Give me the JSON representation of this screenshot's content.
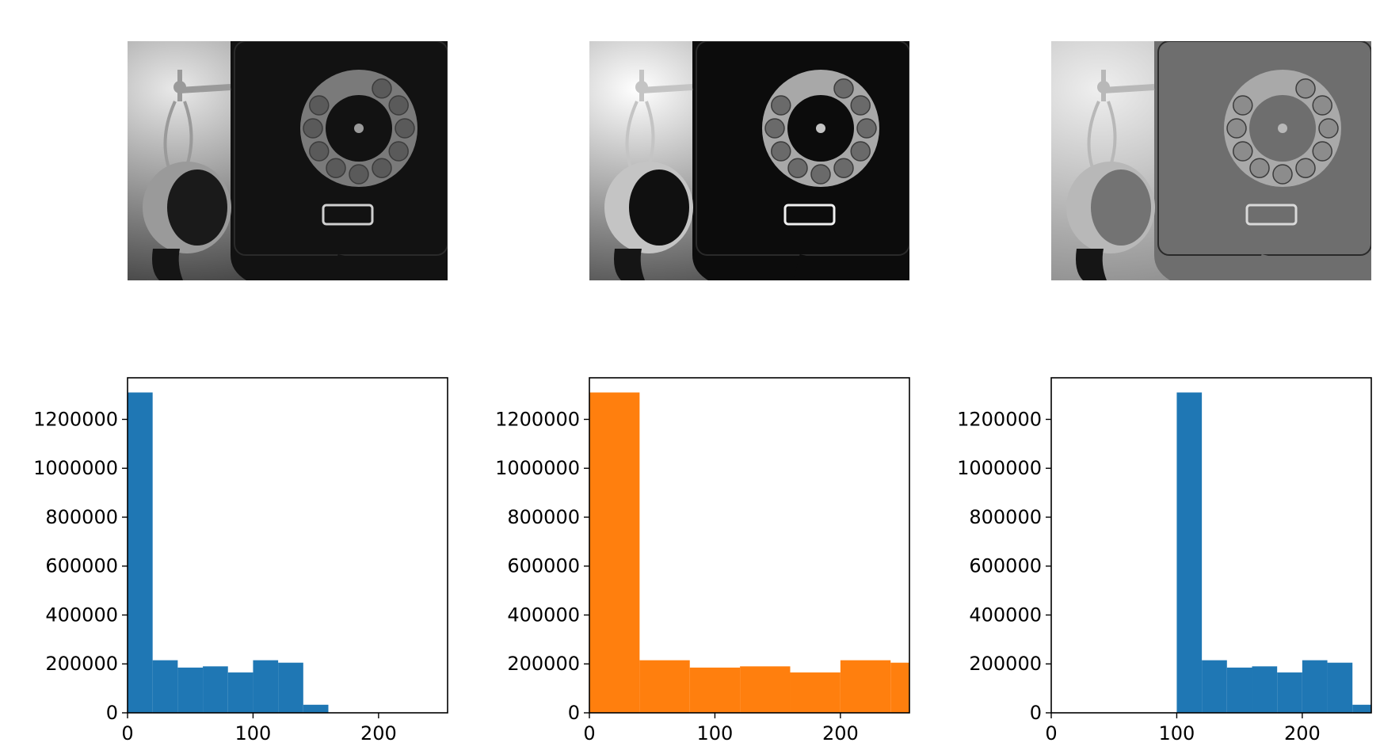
{
  "panels": [
    {
      "image": {
        "name": "rotary-telephone-photo",
        "tone": "dark"
      },
      "chart": {
        "type": "bar",
        "series_color": "#1f77b4",
        "xlim": [
          0,
          255
        ],
        "ylim": [
          0,
          1370000
        ],
        "xticks": [
          0,
          100,
          200
        ],
        "yticks": [
          0,
          200000,
          400000,
          600000,
          800000,
          1000000,
          1200000
        ],
        "bins": [
          {
            "x0": 0,
            "x1": 20,
            "value": 1310000
          },
          {
            "x0": 20,
            "x1": 40,
            "value": 215000
          },
          {
            "x0": 40,
            "x1": 60,
            "value": 185000
          },
          {
            "x0": 60,
            "x1": 80,
            "value": 190000
          },
          {
            "x0": 80,
            "x1": 100,
            "value": 165000
          },
          {
            "x0": 100,
            "x1": 120,
            "value": 215000
          },
          {
            "x0": 120,
            "x1": 140,
            "value": 205000
          },
          {
            "x0": 140,
            "x1": 160,
            "value": 33000
          },
          {
            "x0": 160,
            "x1": 180,
            "value": 0
          },
          {
            "x0": 180,
            "x1": 200,
            "value": 0
          },
          {
            "x0": 200,
            "x1": 220,
            "value": 0
          },
          {
            "x0": 220,
            "x1": 240,
            "value": 0
          }
        ]
      }
    },
    {
      "image": {
        "name": "rotary-telephone-photo-equalized",
        "tone": "contrast"
      },
      "chart": {
        "type": "bar",
        "series_color": "#ff7f0e",
        "xlim": [
          0,
          255
        ],
        "ylim": [
          0,
          1370000
        ],
        "xticks": [
          0,
          100,
          200
        ],
        "yticks": [
          0,
          200000,
          400000,
          600000,
          800000,
          1000000,
          1200000
        ],
        "bins": [
          {
            "x0": 0,
            "x1": 40,
            "value": 1310000
          },
          {
            "x0": 40,
            "x1": 80,
            "value": 215000
          },
          {
            "x0": 80,
            "x1": 120,
            "value": 185000
          },
          {
            "x0": 120,
            "x1": 160,
            "value": 190000
          },
          {
            "x0": 160,
            "x1": 200,
            "value": 165000
          },
          {
            "x0": 200,
            "x1": 240,
            "value": 215000
          },
          {
            "x0": 240,
            "x1": 255,
            "value": 205000
          }
        ]
      }
    },
    {
      "image": {
        "name": "rotary-telephone-photo-brightened",
        "tone": "bright"
      },
      "chart": {
        "type": "bar",
        "series_color": "#1f77b4",
        "xlim": [
          0,
          255
        ],
        "ylim": [
          0,
          1370000
        ],
        "xticks": [
          0,
          100,
          200
        ],
        "yticks": [
          0,
          200000,
          400000,
          600000,
          800000,
          1000000,
          1200000
        ],
        "bins": [
          {
            "x0": 100,
            "x1": 120,
            "value": 1310000
          },
          {
            "x0": 120,
            "x1": 140,
            "value": 215000
          },
          {
            "x0": 140,
            "x1": 160,
            "value": 185000
          },
          {
            "x0": 160,
            "x1": 180,
            "value": 190000
          },
          {
            "x0": 180,
            "x1": 200,
            "value": 165000
          },
          {
            "x0": 200,
            "x1": 220,
            "value": 215000
          },
          {
            "x0": 220,
            "x1": 240,
            "value": 205000
          },
          {
            "x0": 240,
            "x1": 255,
            "value": 33000
          }
        ]
      }
    }
  ],
  "chart_data": [
    {
      "type": "bar",
      "x": [
        10,
        30,
        50,
        70,
        90,
        110,
        130,
        150
      ],
      "values": [
        1310000,
        215000,
        185000,
        190000,
        165000,
        215000,
        205000,
        33000
      ],
      "xlim": [
        0,
        255
      ],
      "ylim": [
        0,
        1370000
      ],
      "xticks": [
        0,
        100,
        200
      ],
      "yticks": [
        0,
        200000,
        400000,
        600000,
        800000,
        1000000,
        1200000
      ],
      "title": "",
      "xlabel": "",
      "ylabel": ""
    },
    {
      "type": "bar",
      "x": [
        20,
        60,
        100,
        140,
        180,
        220,
        247
      ],
      "values": [
        1310000,
        215000,
        185000,
        190000,
        165000,
        215000,
        205000
      ],
      "xlim": [
        0,
        255
      ],
      "ylim": [
        0,
        1370000
      ],
      "xticks": [
        0,
        100,
        200
      ],
      "yticks": [
        0,
        200000,
        400000,
        600000,
        800000,
        1000000,
        1200000
      ],
      "title": "",
      "xlabel": "",
      "ylabel": ""
    },
    {
      "type": "bar",
      "x": [
        110,
        130,
        150,
        170,
        190,
        210,
        230,
        247
      ],
      "values": [
        1310000,
        215000,
        185000,
        190000,
        165000,
        215000,
        205000,
        33000
      ],
      "xlim": [
        0,
        255
      ],
      "ylim": [
        0,
        1370000
      ],
      "xticks": [
        0,
        100,
        200
      ],
      "yticks": [
        0,
        200000,
        400000,
        600000,
        800000,
        1000000,
        1200000
      ],
      "title": "",
      "xlabel": "",
      "ylabel": ""
    }
  ]
}
